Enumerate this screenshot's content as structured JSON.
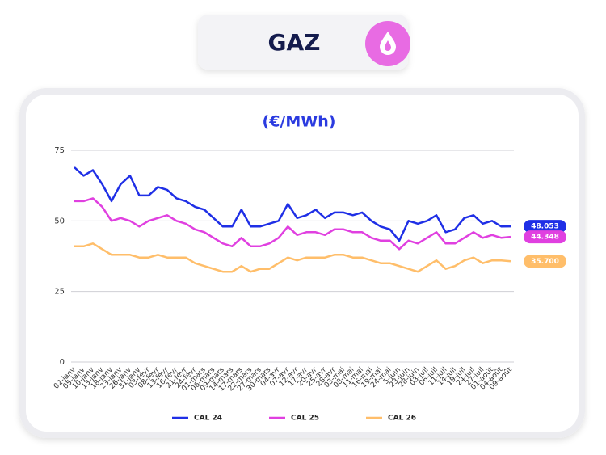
{
  "header": {
    "title": "GAZ"
  },
  "chart_data": {
    "type": "line",
    "subtitle": "(€/MWh)",
    "categories": [
      "02-janv",
      "05-janv",
      "10-janv",
      "13-janv",
      "18-janv",
      "23-janv",
      "26-janv",
      "31-janv",
      "03-févr",
      "08-févr",
      "13-févr",
      "16-févr",
      "21-févr",
      "24-févr",
      "01-mars",
      "06-mars",
      "09-mars",
      "14-mars",
      "17-mars",
      "22-mars",
      "27-mars",
      "30-mars",
      "04-avr",
      "07-avr",
      "12-avr",
      "17-avr",
      "20-avr",
      "25-avr",
      "28-avr",
      "03-mai",
      "08-mai",
      "11-mai",
      "16-mai",
      "19-mai",
      "24-mai",
      "5-juin",
      "23-juin",
      "28-juin",
      "03-juil",
      "06-juil",
      "11-juil",
      "14-juil",
      "19-juil",
      "24-juil",
      "27-juil",
      "01-août",
      "04-août",
      "09-août"
    ],
    "series": [
      {
        "name": "CAL 24",
        "color": "#1f2fe6",
        "end_label": "48.053",
        "values": [
          69,
          66,
          68,
          63,
          57,
          63,
          66,
          59,
          59,
          62,
          61,
          58,
          57,
          55,
          54,
          51,
          48,
          48,
          54,
          48,
          48,
          49,
          50,
          56,
          51,
          52,
          54,
          51,
          53,
          53,
          52,
          53,
          50,
          48,
          47,
          43,
          50,
          49,
          50,
          52,
          46,
          47,
          51,
          52,
          49,
          50,
          48,
          48.053
        ]
      },
      {
        "name": "CAL 25",
        "color": "#e040e0",
        "end_label": "44.348",
        "values": [
          57,
          57,
          58,
          55,
          50,
          51,
          50,
          48,
          50,
          51,
          52,
          50,
          49,
          47,
          46,
          44,
          42,
          41,
          44,
          41,
          41,
          42,
          44,
          48,
          45,
          46,
          46,
          45,
          47,
          47,
          46,
          46,
          44,
          43,
          43,
          40,
          43,
          42,
          44,
          46,
          42,
          42,
          44,
          46,
          44,
          45,
          44,
          44.348
        ]
      },
      {
        "name": "CAL 26",
        "color": "#ffbe6a",
        "end_label": "35.700",
        "values": [
          41,
          41,
          42,
          40,
          38,
          38,
          38,
          37,
          37,
          38,
          37,
          37,
          37,
          35,
          34,
          33,
          32,
          32,
          34,
          32,
          33,
          33,
          35,
          37,
          36,
          37,
          37,
          37,
          38,
          38,
          37,
          37,
          36,
          35,
          35,
          34,
          33,
          32,
          34,
          36,
          33,
          34,
          36,
          37,
          35,
          36,
          36,
          35.7
        ]
      }
    ],
    "ylim": [
      0,
      75
    ],
    "yticks": [
      0,
      25,
      50,
      75
    ],
    "grid": true
  }
}
